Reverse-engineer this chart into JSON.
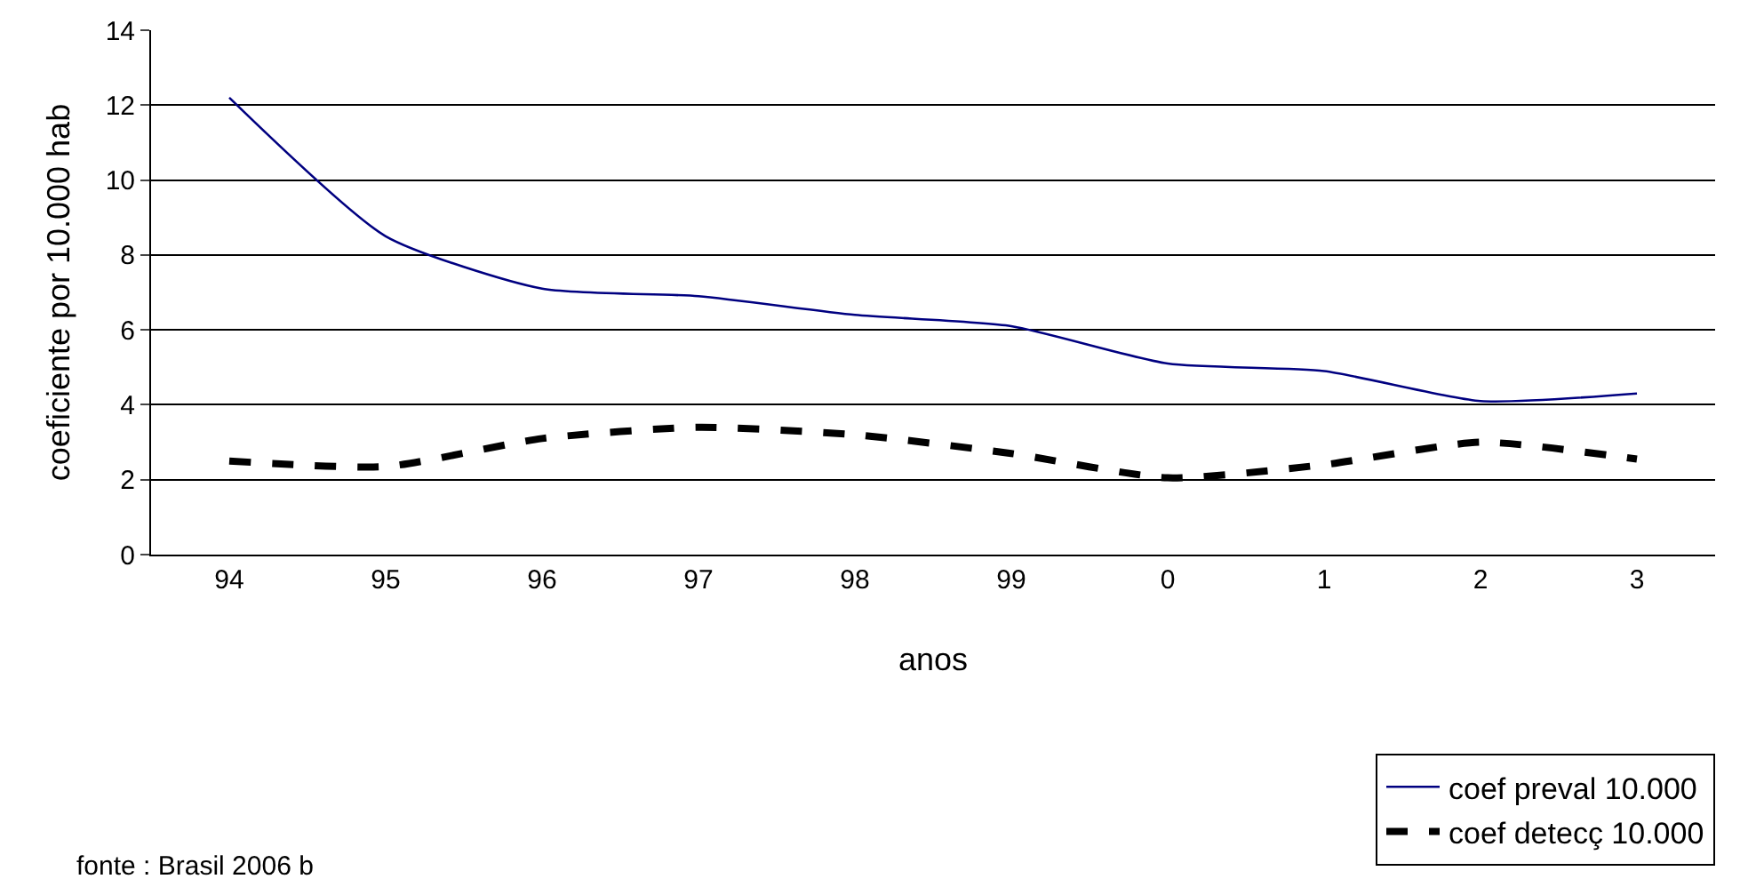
{
  "chart_data": {
    "type": "line",
    "xlabel": "anos",
    "ylabel": "coeficiente por 10.000 hab",
    "categories": [
      "94",
      "95",
      "96",
      "97",
      "98",
      "99",
      "0",
      "1",
      "2",
      "3"
    ],
    "series": [
      {
        "name": "coef preval 10.000",
        "color": "#000080",
        "line_style": "solid",
        "values": [
          12.2,
          8.5,
          7.1,
          6.9,
          6.4,
          6.1,
          5.1,
          4.9,
          4.1,
          4.3
        ]
      },
      {
        "name": "coef detecç 10.000",
        "color": "#000000",
        "line_style": "dashed",
        "values": [
          2.5,
          2.35,
          3.1,
          3.4,
          3.2,
          2.7,
          2.05,
          2.4,
          3.0,
          2.55
        ]
      }
    ],
    "ylim": [
      0,
      14
    ],
    "yticks": [
      0,
      2,
      4,
      6,
      8,
      10,
      12,
      14
    ],
    "grid": "y",
    "legend": "bottom right",
    "marker": "none",
    "annotations": [
      "fonte : Brasil 2006 b"
    ]
  }
}
